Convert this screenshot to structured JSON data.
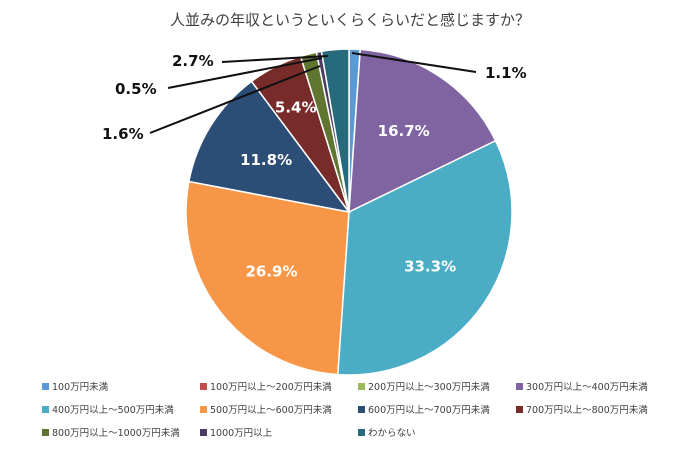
{
  "chart_data": {
    "type": "pie",
    "title": "人並みの年収というといくらくらいだと感じますか？",
    "legend_position": "bottom",
    "slices": [
      {
        "name": "100万円未満",
        "value": 1.1,
        "label": "1.1%",
        "color": "#5b9bd5",
        "label_outside": true
      },
      {
        "name": "100万円以上～200万円未満",
        "value": 0.0,
        "label": "",
        "color": "#c0504d",
        "label_outside": false
      },
      {
        "name": "200万円以上～300万円未満",
        "value": 0.0,
        "label": "",
        "color": "#9bbb59",
        "label_outside": false
      },
      {
        "name": "300万円以上～400万円未満",
        "value": 16.7,
        "label": "16.7%",
        "color": "#8064a2",
        "label_outside": false
      },
      {
        "name": "400万円以上～500万円未満",
        "value": 33.3,
        "label": "33.3%",
        "color": "#4bacc6",
        "label_outside": false
      },
      {
        "name": "500万円以上～600万円未満",
        "value": 26.9,
        "label": "26.9%",
        "color": "#f79646",
        "label_outside": false
      },
      {
        "name": "600万円以上～700万円未満",
        "value": 11.8,
        "label": "11.8%",
        "color": "#2c4d75",
        "label_outside": false
      },
      {
        "name": "700万円以上～800万円未満",
        "value": 5.4,
        "label": "5.4%",
        "color": "#772c2a",
        "label_outside": false
      },
      {
        "name": "800万円以上～1000万円未満",
        "value": 1.6,
        "label": "1.6%",
        "color": "#5f7530",
        "label_outside": true
      },
      {
        "name": "1000万円以上",
        "value": 0.5,
        "label": "0.5%",
        "color": "#4d3b62",
        "label_outside": true
      },
      {
        "name": "わからない",
        "value": 2.7,
        "label": "2.7%",
        "color": "#276a7c",
        "label_outside": true
      }
    ]
  }
}
